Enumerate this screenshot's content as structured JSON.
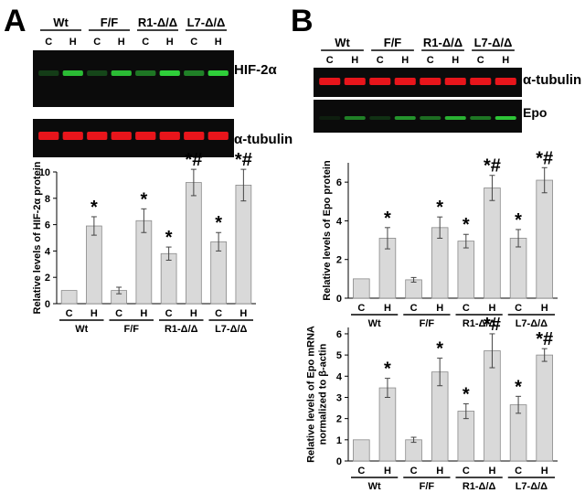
{
  "panels": {
    "A": {
      "letter": "A",
      "groups": [
        "Wt",
        "F/F",
        "R1-Δ/Δ",
        "L7-Δ/Δ"
      ],
      "lanes": [
        "C",
        "H",
        "C",
        "H",
        "C",
        "H",
        "C",
        "H"
      ],
      "blot_labels": [
        "HIF-2α",
        "α-tubulin"
      ]
    },
    "B": {
      "letter": "B",
      "groups": [
        "Wt",
        "F/F",
        "R1-Δ/Δ",
        "L7-Δ/Δ"
      ],
      "lanes": [
        "C",
        "H",
        "C",
        "H",
        "C",
        "H",
        "C",
        "H"
      ],
      "blot_labels": [
        "α-tubulin",
        "Epo"
      ]
    }
  },
  "colors": {
    "tubulin": "#e8151b",
    "target": "#2fcf3a",
    "bar": "#d9d9d9",
    "blot_bg": "#0b0b0b"
  },
  "chart_data": [
    {
      "type": "bar",
      "panel": "A",
      "categories": [
        "C",
        "H",
        "C",
        "H",
        "C",
        "H",
        "C",
        "H"
      ],
      "groups": [
        "Wt",
        "F/F",
        "R1-Δ/Δ",
        "L7-Δ/Δ"
      ],
      "values": [
        1.0,
        5.9,
        1.0,
        6.3,
        3.8,
        9.2,
        4.7,
        9.0
      ],
      "errors": [
        0,
        0.7,
        0.25,
        0.9,
        0.5,
        1.0,
        0.7,
        1.2
      ],
      "annotations": [
        "",
        "*",
        "",
        "*",
        "*",
        "*#",
        "*",
        "*#"
      ],
      "ylabel": "Relative levels of HIF-2α protein",
      "ylim": [
        0,
        10
      ],
      "yticks": [
        0,
        2,
        4,
        6,
        8,
        10
      ]
    },
    {
      "type": "bar",
      "panel": "B-top",
      "categories": [
        "C",
        "H",
        "C",
        "H",
        "C",
        "H",
        "C",
        "H"
      ],
      "groups": [
        "Wt",
        "F/F",
        "R1-Δ/Δ",
        "L7-Δ/Δ"
      ],
      "values": [
        1.0,
        3.1,
        0.95,
        3.65,
        2.95,
        5.7,
        3.1,
        6.1
      ],
      "errors": [
        0,
        0.55,
        0.12,
        0.55,
        0.35,
        0.65,
        0.45,
        0.65
      ],
      "annotations": [
        "",
        "*",
        "",
        "*",
        "*",
        "*#",
        "*",
        "*#"
      ],
      "ylabel": "Relative levels of Epo protein",
      "ylim": [
        0,
        7
      ],
      "yticks": [
        0,
        2,
        4,
        6
      ]
    },
    {
      "type": "bar",
      "panel": "B-bottom",
      "categories": [
        "C",
        "H",
        "C",
        "H",
        "C",
        "H",
        "C",
        "H"
      ],
      "groups": [
        "Wt",
        "F/F",
        "R1-Δ/Δ",
        "L7-Δ/Δ"
      ],
      "values": [
        1.0,
        3.45,
        1.0,
        4.2,
        2.35,
        5.2,
        2.65,
        5.0
      ],
      "errors": [
        0,
        0.45,
        0.12,
        0.65,
        0.35,
        0.8,
        0.4,
        0.3
      ],
      "annotations": [
        "",
        "*",
        "",
        "*",
        "*",
        "*#",
        "*",
        "*#"
      ],
      "ylabel": [
        "Relative levels of Epo mRNA",
        "normalized to β-actin"
      ],
      "ylim": [
        0,
        6.3
      ],
      "yticks": [
        0,
        1,
        2,
        3,
        4,
        5,
        6
      ]
    }
  ]
}
